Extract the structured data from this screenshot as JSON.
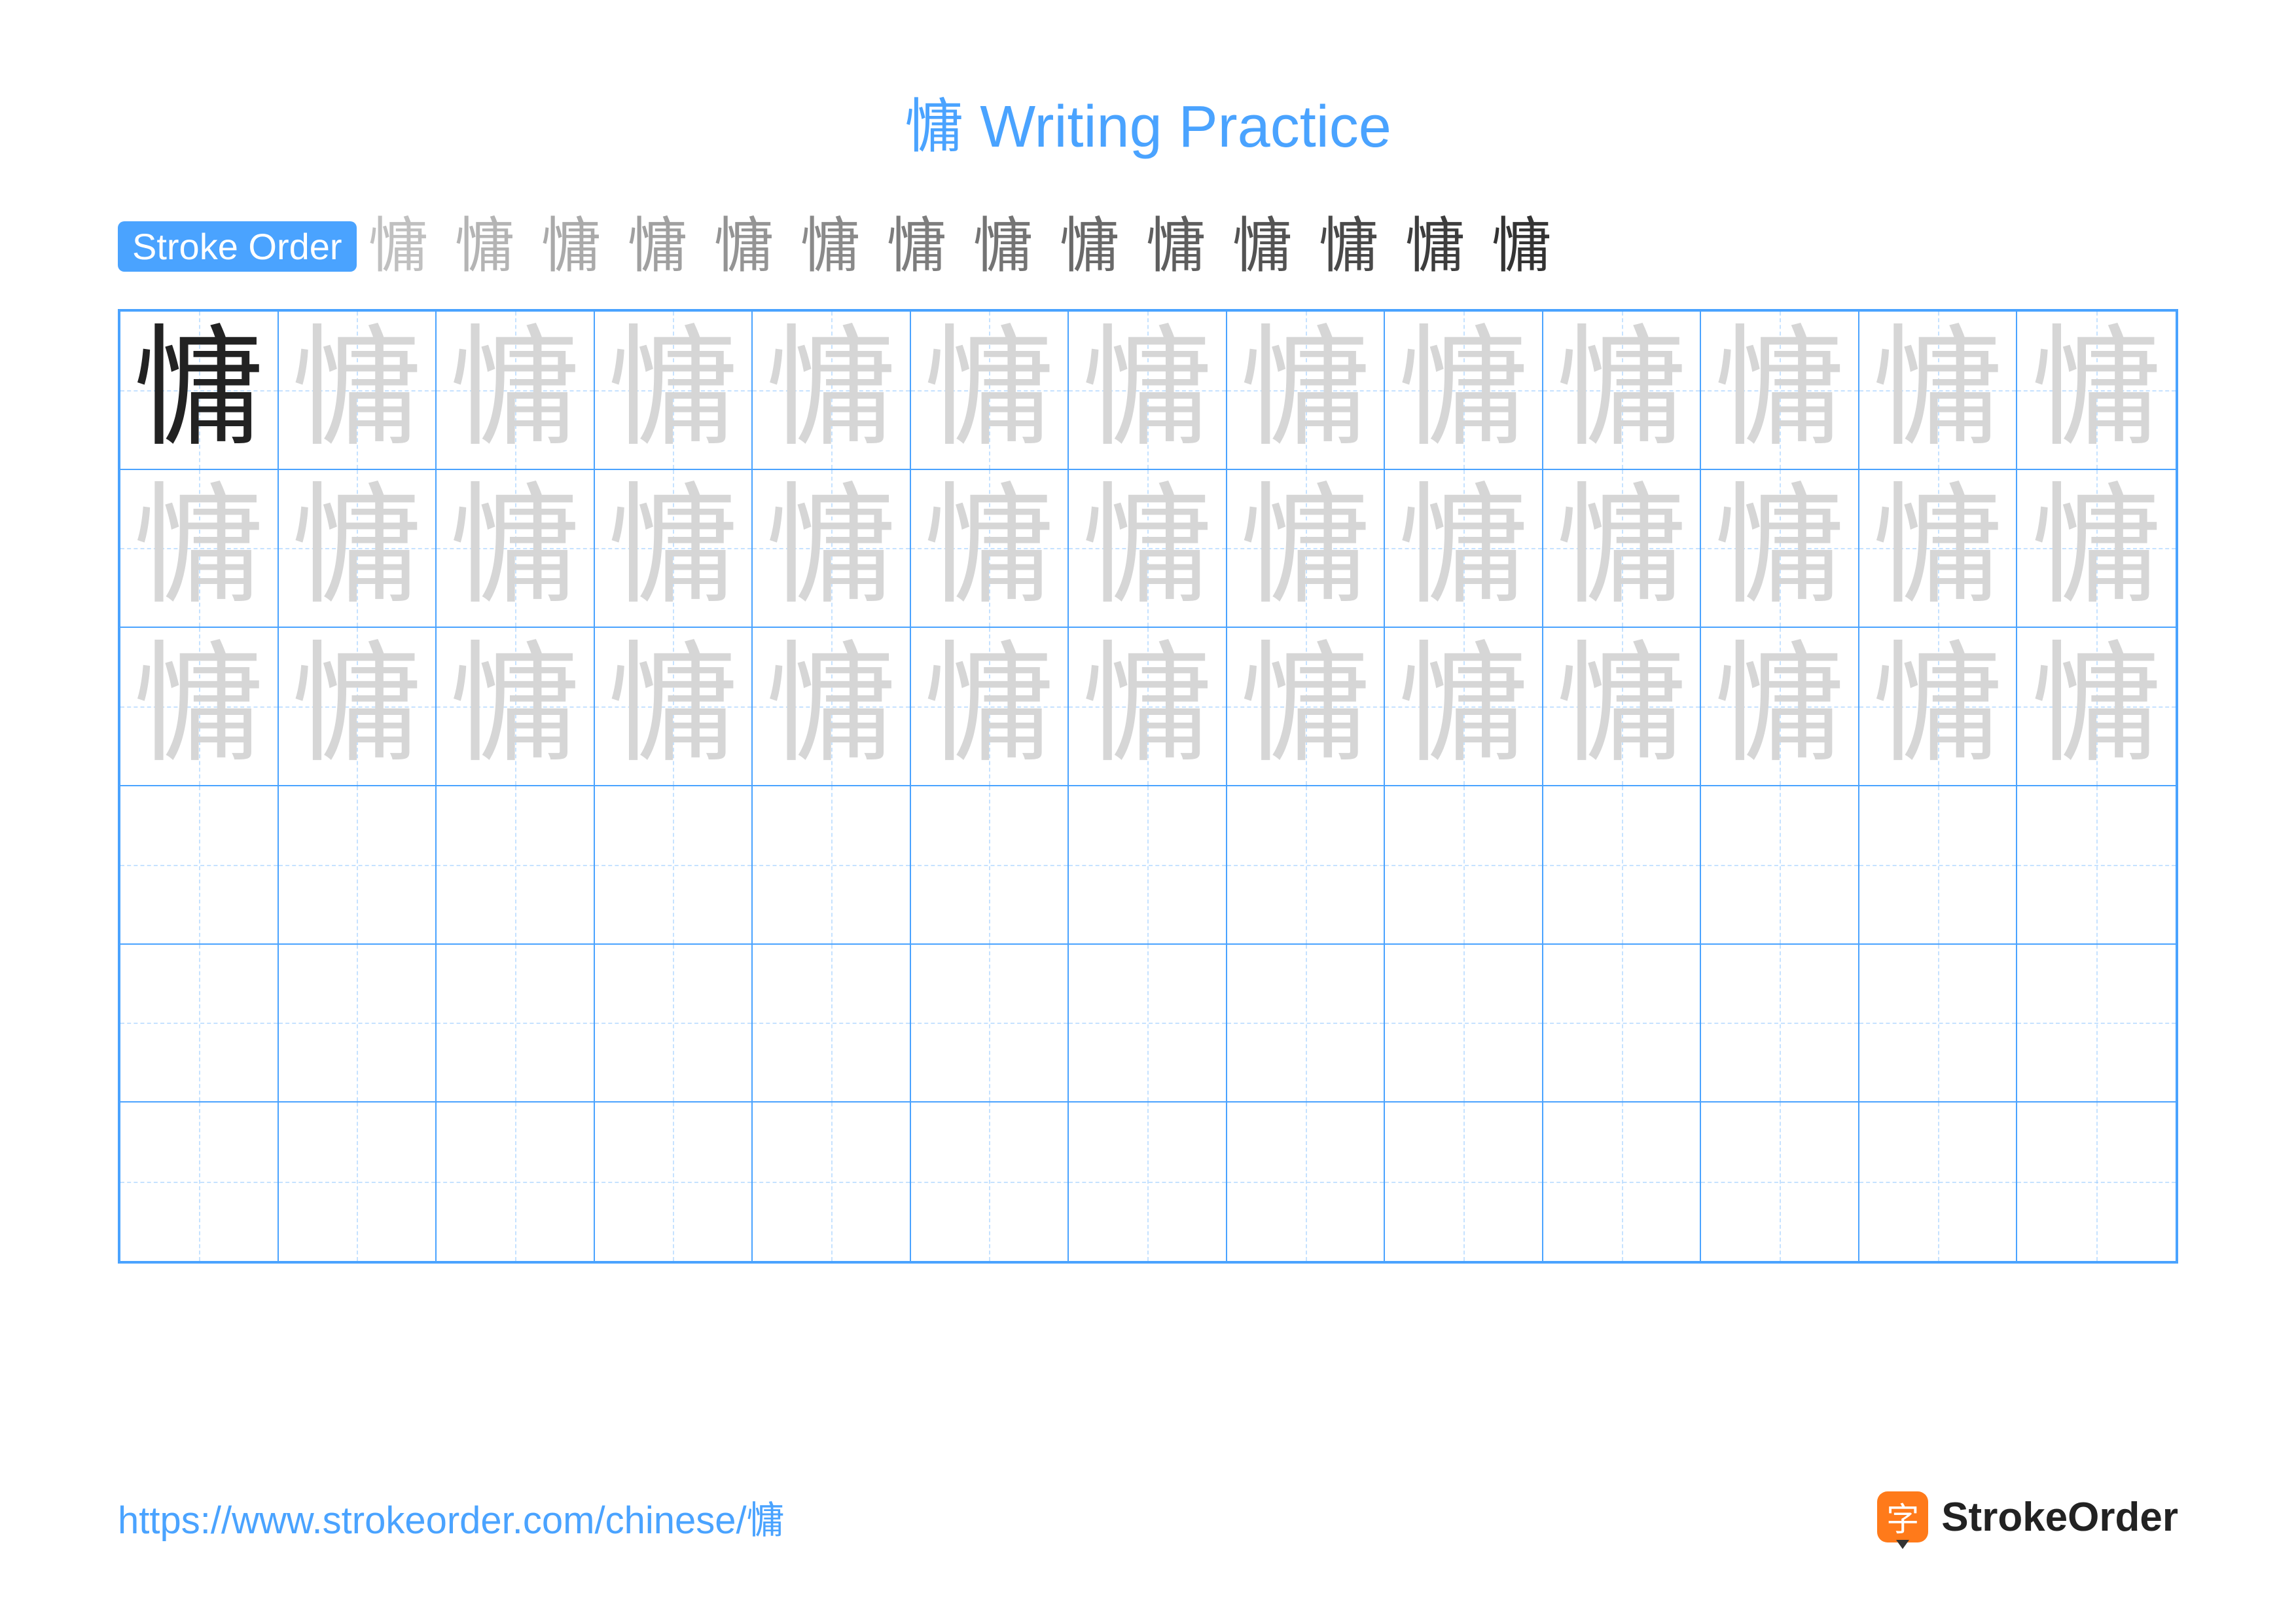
{
  "title": "慵 Writing Practice",
  "stroke_order_label": "Stroke Order",
  "character": "慵",
  "stroke_count": 14,
  "colors": {
    "title": "#4aa3ff",
    "badge_bg": "#4aa3ff",
    "grid_border": "#4aa3ff",
    "guide_dash": "#8fc6ff",
    "model_char": "#222222",
    "trace_char": "#d6d6d6",
    "url": "#4aa3ff",
    "brand_icon_bg": "#ff7a1a",
    "brand_icon_tip": "#333333"
  },
  "grid": {
    "cols": 13,
    "rows": 6,
    "trace_rows": 3,
    "model_cell": {
      "row": 0,
      "col": 0
    }
  },
  "footer": {
    "url": "https://www.strokeorder.com/chinese/慵",
    "brand_glyph": "字",
    "brand_name": "StrokeOrder"
  },
  "typography": {
    "title_fontsize": 90,
    "badge_fontsize": 56,
    "stroke_step_fontsize": 92,
    "cell_char_fontsize": 200,
    "url_fontsize": 58,
    "brand_fontsize": 62
  }
}
